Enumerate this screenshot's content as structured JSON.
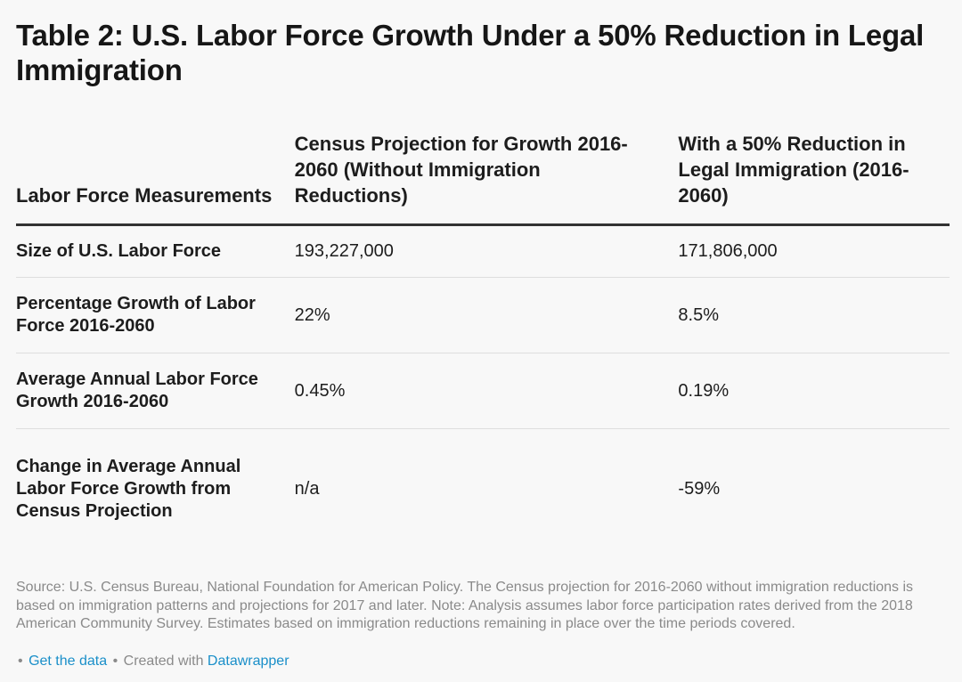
{
  "title": "Table 2: U.S. Labor Force Growth Under a 50% Reduction in Legal Immigration",
  "table": {
    "headers": [
      "Labor Force Measurements",
      "Census Projection for Growth 2016-2060 (Without Immigration Reductions)",
      "With a 50% Reduction in Legal Immigration (2016-2060)"
    ],
    "rows": [
      {
        "label": "Size of U.S. Labor Force",
        "census": "193,227,000",
        "reduction": "171,806,000"
      },
      {
        "label": "Percentage Growth of Labor Force 2016-2060",
        "census": "22%",
        "reduction": "8.5%"
      },
      {
        "label": "Average Annual Labor Force Growth 2016-2060",
        "census": "0.45%",
        "reduction": "0.19%"
      },
      {
        "label": "Change in Average Annual Labor Force Growth from Census Projection",
        "census": "n/a",
        "reduction": "-59%"
      }
    ]
  },
  "notes": "Source: U.S. Census Bureau, National Foundation for American Policy. The Census projection for 2016-2060 without immigration reductions is based on immigration patterns and projections for 2017 and later. Note: Analysis assumes labor force participation rates derived from the 2018 American Community Survey. Estimates based on immigration reductions remaining in place over the time periods covered.",
  "footer": {
    "separator": "•",
    "get_data_label": "Get the data",
    "created_with_label": "Created with",
    "datawrapper_label": "Datawrapper"
  },
  "colors": {
    "link": "#1a8fc9",
    "notes_text": "#8a8a8a",
    "header_rule": "#333333",
    "row_rule": "#dedede"
  }
}
